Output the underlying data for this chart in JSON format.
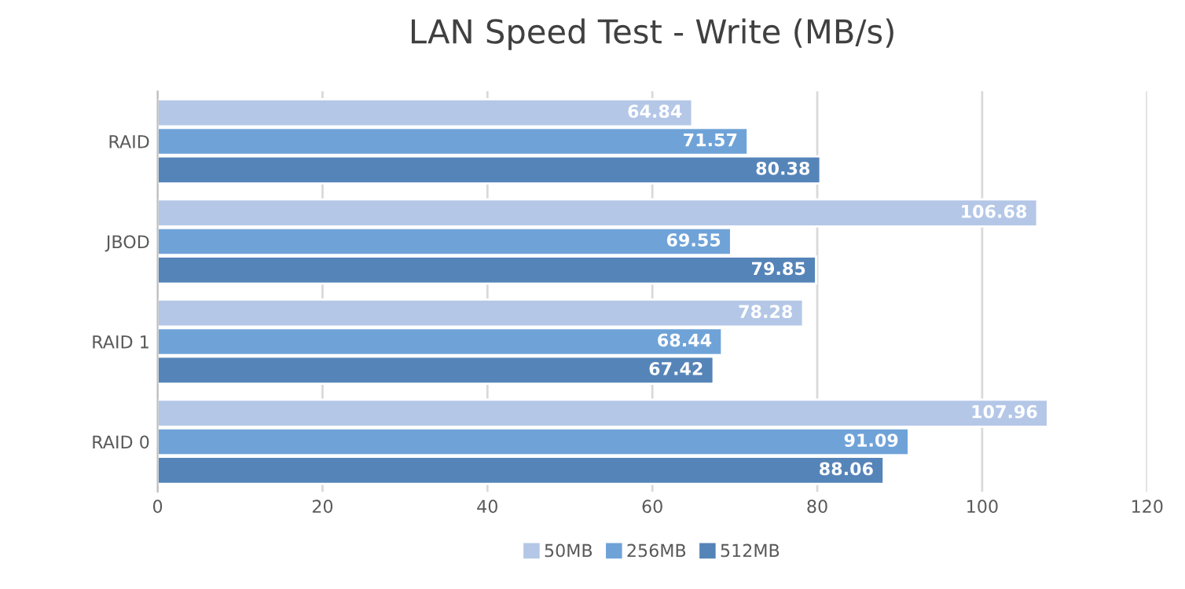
{
  "chart_data": {
    "type": "bar",
    "orientation": "horizontal",
    "title": "LAN Speed Test - Write (MB/s)",
    "categories": [
      "RAID",
      "JBOD",
      "RAID 1",
      "RAID 0"
    ],
    "series": [
      {
        "name": "50MB",
        "color": "#b4c7e7",
        "values": [
          64.84,
          106.68,
          78.28,
          107.96
        ]
      },
      {
        "name": "256MB",
        "color": "#6fa3d8",
        "values": [
          71.57,
          69.55,
          68.44,
          91.09
        ]
      },
      {
        "name": "512MB",
        "color": "#5584b8",
        "values": [
          80.38,
          79.85,
          67.42,
          88.06
        ]
      }
    ],
    "xlim": [
      0,
      120
    ],
    "xticks": [
      0,
      20,
      40,
      60,
      80,
      100,
      120
    ],
    "grid": "x",
    "legend": "bottom",
    "data_labels": true
  }
}
